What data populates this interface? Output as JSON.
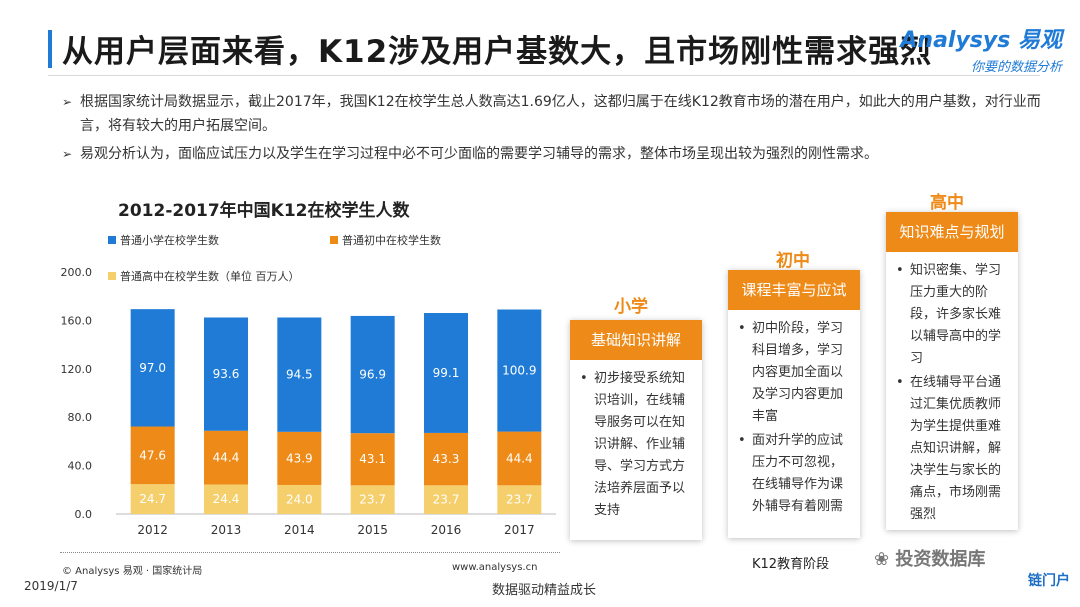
{
  "header": {
    "title": "从用户层面来看，K12涉及用户基数大，且市场刚性需求强烈",
    "logo_main": "Analysys 易观",
    "logo_sub": "你要的数据分析"
  },
  "bullets": [
    "根据国家统计局数据显示，截止2017年，我国K12在校学生总人数高达1.69亿人，这都归属于在线K12教育市场的潜在用户，如此大的用户基数，对行业而言，将有较大的用户拓展空间。",
    "易观分析认为，面临应试压力以及学生在学习过程中必不可少面临的需要学习辅导的需求，整体市场呈现出较为强烈的刚性需求。"
  ],
  "chart_data": {
    "type": "bar",
    "stacked": true,
    "title": "2012-2017年中国K12在校学生人数",
    "categories": [
      "2012",
      "2013",
      "2014",
      "2015",
      "2016",
      "2017"
    ],
    "series": [
      {
        "name": "普通高中在校学生数（单位 百万人）",
        "color": "#f5cf6c",
        "values": [
          24.7,
          24.4,
          24.0,
          23.7,
          23.7,
          23.7
        ]
      },
      {
        "name": "普通初中在校学生数",
        "color": "#ee8a17",
        "values": [
          47.6,
          44.4,
          43.9,
          43.1,
          43.3,
          44.4
        ]
      },
      {
        "name": "普通小学在校学生数",
        "color": "#1f7bd6",
        "values": [
          97.0,
          93.6,
          94.5,
          96.9,
          99.1,
          100.9
        ]
      }
    ],
    "legend": [
      "普通小学在校学生数",
      "普通初中在校学生数",
      "普通高中在校学生数（单位 百万人）"
    ],
    "yticks": [
      "0.0",
      "40.0",
      "80.0",
      "120.0",
      "160.0",
      "200.0"
    ],
    "ylim": [
      0,
      200
    ],
    "legend_position": "top"
  },
  "chart_footer": {
    "source": "© Analysys 易观 · 国家统计局",
    "url": "www.analysys.cn"
  },
  "stages": [
    {
      "label": "小学",
      "head": "基础知识讲解",
      "items": [
        "初步接受系统知识培训，在线辅导服务可以在知识讲解、作业辅导、学习方式方法培养层面予以支持"
      ]
    },
    {
      "label": "初中",
      "head": "课程丰富与应试",
      "items": [
        "初中阶段，学习科目增多，学习内容更加全面以及学习内容更加丰富",
        "面对升学的应试压力不可忽视，在线辅导作为课外辅导有着刚需"
      ]
    },
    {
      "label": "高中",
      "head": "知识难点与规划",
      "items": [
        "知识密集、学习压力重大的阶段，许多家长难以辅导高中的学习",
        "在线辅导平台通过汇集优质教师为学生提供重难点知识讲解，解决学生与家长的痛点，市场刚需强烈"
      ]
    }
  ],
  "stage_caption": "K12教育阶段",
  "footer": {
    "date": "2019/1/7",
    "slogan": "数据驱动精益成长",
    "wechat": "投资数据库",
    "brand": "链门户"
  }
}
